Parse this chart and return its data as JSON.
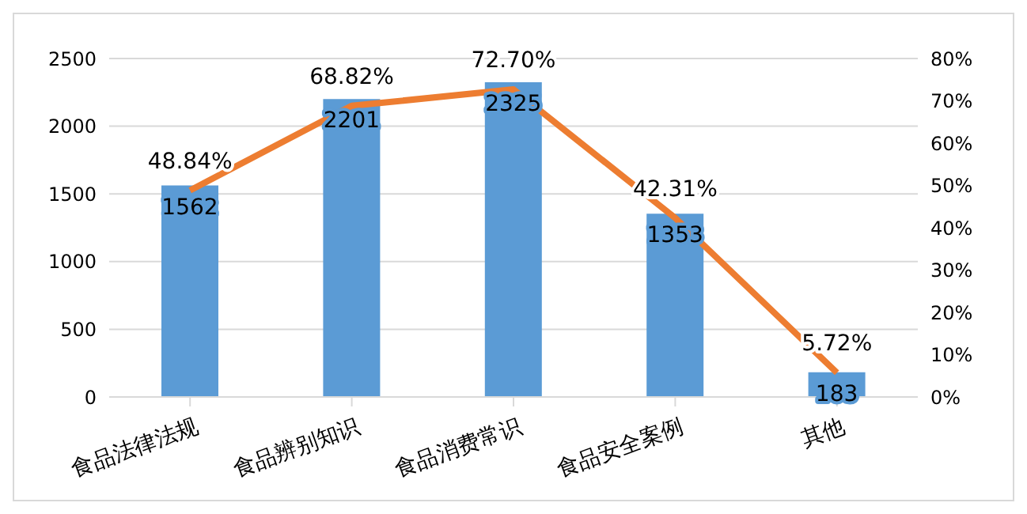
{
  "chart_data": {
    "type": "bar",
    "categories": [
      "食品法律法规",
      "食品辨别知识",
      "食品消费常识",
      "食品安全案例",
      "其他"
    ],
    "series": [
      {
        "color": "#5b9bd5",
        "values": [
          1562,
          2201,
          2325,
          1353,
          183
        ],
        "value_labels": [
          "1562",
          "2201",
          "2325",
          "1353",
          "183"
        ]
      },
      {
        "type": "line",
        "axis": "y2",
        "color": "#ed7d31",
        "values": [
          48.84,
          68.82,
          72.7,
          42.31,
          5.72
        ],
        "value_labels": [
          "48.84%",
          "68.82%",
          "72.70%",
          "42.31%",
          "5.72%"
        ]
      }
    ],
    "ylim": [
      0,
      2500
    ],
    "yticks": [
      0,
      500,
      1000,
      1500,
      2000,
      2500
    ],
    "y2lim": [
      0,
      80
    ],
    "y2ticks": [
      {
        "value": 0,
        "label": "0%"
      },
      {
        "value": 10,
        "label": "10%"
      },
      {
        "value": 20,
        "label": "20%"
      },
      {
        "value": 30,
        "label": "30%"
      },
      {
        "value": 40,
        "label": "40%"
      },
      {
        "value": 50,
        "label": "50%"
      },
      {
        "value": 60,
        "label": "60%"
      },
      {
        "value": 70,
        "label": "70%"
      },
      {
        "value": 80,
        "label": "80%"
      }
    ],
    "grid": "y",
    "marker": "none",
    "line_style": "solid",
    "legend": false
  }
}
